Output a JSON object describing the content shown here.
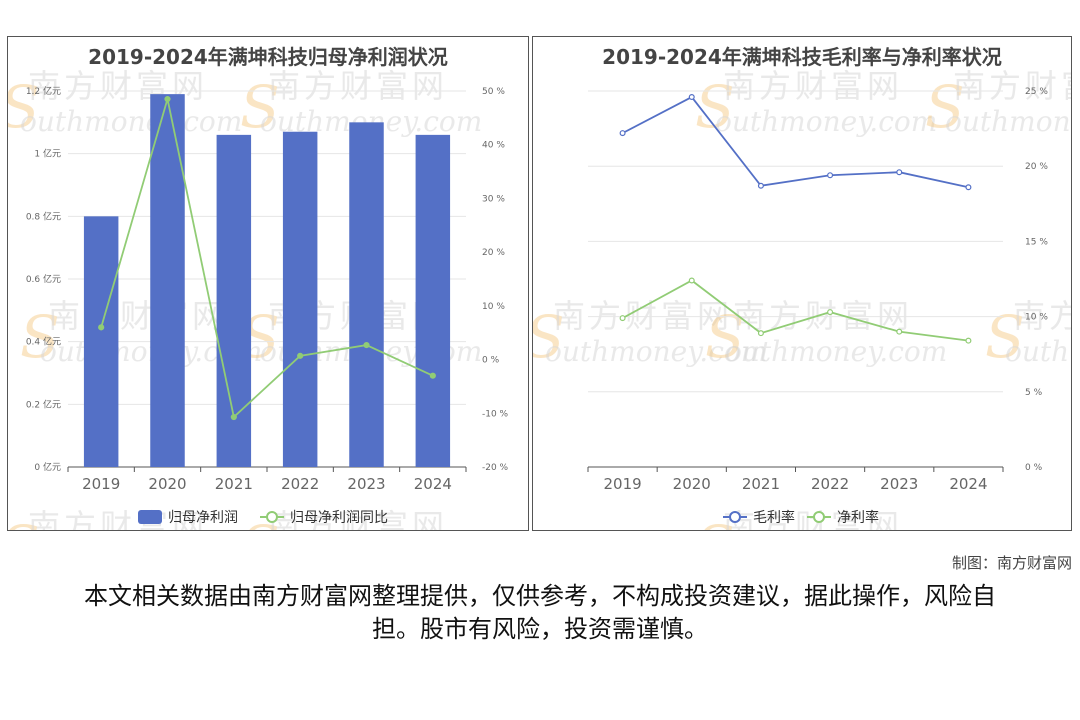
{
  "chart_data": [
    {
      "type": "bar",
      "title": "2019-2024年满坤科技归母净利润状况",
      "categories": [
        "2019",
        "2020",
        "2021",
        "2022",
        "2023",
        "2024"
      ],
      "series": [
        {
          "name": "归母净利润",
          "type": "bar",
          "axis": "left",
          "color": "#5470c6",
          "values": [
            0.8,
            1.19,
            1.06,
            1.07,
            1.1,
            1.06
          ]
        },
        {
          "name": "归母净利润同比",
          "type": "line",
          "axis": "right",
          "color": "#91cc75",
          "values": [
            6.0,
            48.5,
            -10.7,
            0.7,
            2.7,
            -3.0
          ]
        }
      ],
      "y_left": {
        "min": 0,
        "max": 1.2,
        "ticks": [
          0,
          0.2,
          0.4,
          0.6,
          0.8,
          1,
          1.2
        ],
        "tick_labels": [
          "0 亿元",
          "0.2 亿元",
          "0.4 亿元",
          "0.6 亿元",
          "0.8 亿元",
          "1 亿元",
          "1.2 亿元"
        ]
      },
      "y_right": {
        "min": -20,
        "max": 50,
        "ticks": [
          -20,
          -10,
          0,
          10,
          20,
          30,
          40,
          50
        ],
        "tick_labels": [
          "-20 %",
          "-10 %",
          "0 %",
          "10 %",
          "20 %",
          "30 %",
          "40 %",
          "50 %"
        ]
      },
      "legend": [
        "归母净利润",
        "归母净利润同比"
      ],
      "legend_position": "bottom",
      "grid": true
    },
    {
      "type": "line",
      "title": "2019-2024年满坤科技毛利率与净利率状况",
      "categories": [
        "2019",
        "2020",
        "2021",
        "2022",
        "2023",
        "2024"
      ],
      "series": [
        {
          "name": "毛利率",
          "color": "#5470c6",
          "values": [
            22.2,
            24.6,
            18.7,
            19.4,
            19.6,
            18.6
          ]
        },
        {
          "name": "净利率",
          "color": "#91cc75",
          "values": [
            9.9,
            12.4,
            8.9,
            10.3,
            9.0,
            8.4
          ]
        }
      ],
      "y_right": {
        "min": 0,
        "max": 25,
        "ticks": [
          0,
          5,
          10,
          15,
          20,
          25
        ],
        "tick_labels": [
          "0 %",
          "5 %",
          "10 %",
          "15 %",
          "20 %",
          "25 %"
        ]
      },
      "legend": [
        "毛利率",
        "净利率"
      ],
      "legend_position": "bottom",
      "grid": true
    }
  ],
  "watermark": {
    "cn": "南方财富网",
    "en": "outhmoney.com",
    "s": "S"
  },
  "credit": "制图：南方财富网",
  "disclaimer": "本文相关数据由南方财富网整理提供，仅供参考，不构成投资建议，据此操作，风险自担。股市有风险，投资需谨慎。"
}
